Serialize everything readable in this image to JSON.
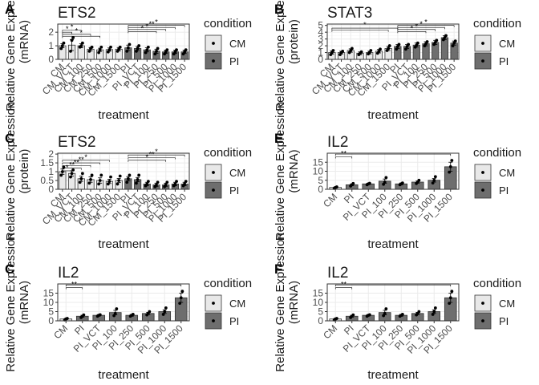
{
  "figure": {
    "legend_title": "condition",
    "legend_items": [
      {
        "label": "CM",
        "color": "#e8e8e8"
      },
      {
        "label": "PI",
        "color": "#6e6e6e"
      }
    ]
  },
  "chart_data": [
    {
      "tag": "A",
      "type": "bar",
      "title": "ETS2",
      "xlabel": "treatment",
      "ylabel": [
        "Relative Gene Expression",
        "(mRNA)"
      ],
      "ylim": [
        0,
        2.6
      ],
      "yticks": [
        0,
        1,
        2
      ],
      "categories": [
        "CM",
        "CM_VCT",
        "CM_100",
        "CM_250",
        "CM_500",
        "CM_1000",
        "CM_1500",
        "PI",
        "PI_VCT",
        "PI_100",
        "PI_250",
        "PI_500",
        "PI_1000",
        "PI_1500"
      ],
      "values": [
        1.0,
        1.05,
        1.0,
        0.75,
        0.7,
        0.72,
        0.75,
        0.85,
        0.8,
        0.7,
        0.6,
        0.55,
        0.55,
        0.55
      ],
      "conditions": [
        "CM",
        "CM",
        "CM",
        "CM",
        "CM",
        "CM",
        "CM",
        "PI",
        "PI",
        "PI",
        "PI",
        "PI",
        "PI",
        "PI"
      ],
      "points": [
        [
          0.8,
          1.0,
          1.2
        ],
        [
          0.6,
          1.4,
          1.6
        ],
        [
          0.9,
          1.0,
          1.2
        ],
        [
          0.6,
          0.8,
          0.9
        ],
        [
          0.5,
          0.7,
          0.9
        ],
        [
          0.55,
          0.7,
          0.9
        ],
        [
          0.6,
          0.75,
          0.9
        ],
        [
          0.6,
          0.85,
          1.1
        ],
        [
          0.6,
          0.8,
          1.0
        ],
        [
          0.5,
          0.7,
          0.9
        ],
        [
          0.4,
          0.6,
          0.8
        ],
        [
          0.4,
          0.55,
          0.7
        ],
        [
          0.4,
          0.55,
          0.7
        ],
        [
          0.4,
          0.55,
          0.7
        ]
      ],
      "errors": [
        0.15,
        0.4,
        0.15,
        0.12,
        0.12,
        0.12,
        0.12,
        0.2,
        0.15,
        0.15,
        0.15,
        0.12,
        0.12,
        0.12
      ],
      "brackets": [
        {
          "from": 0,
          "to": 1,
          "y": 2.0,
          "label": "*"
        },
        {
          "from": 0,
          "to": 2,
          "y": 2.15,
          "label": "*"
        },
        {
          "from": 0,
          "to": 3,
          "y": 1.85,
          "label": "*"
        },
        {
          "from": 0,
          "to": 4,
          "y": 1.7,
          "label": "*"
        },
        {
          "from": 7,
          "to": 13,
          "y": 2.5,
          "label": "*"
        },
        {
          "from": 7,
          "to": 12,
          "y": 2.35,
          "label": "**"
        },
        {
          "from": 7,
          "to": 11,
          "y": 2.2,
          "label": "*"
        },
        {
          "from": 7,
          "to": 10,
          "y": 2.05,
          "label": "*"
        }
      ]
    },
    {
      "tag": "B",
      "type": "bar",
      "title": "STAT3",
      "xlabel": "treatment",
      "ylabel": [
        "Relative Gene Expression",
        "(protein)"
      ],
      "ylim": [
        0,
        5.2
      ],
      "yticks": [
        0,
        1,
        2,
        3,
        4,
        5
      ],
      "categories": [
        "CM",
        "CM_VCT",
        "CM_100",
        "CM_250",
        "CM_500",
        "CM_1000",
        "CM_1500",
        "PI",
        "PI_VCT",
        "PI_100",
        "PI_250",
        "PI_500",
        "PI_1000",
        "PI_1500"
      ],
      "values": [
        1.0,
        1.0,
        1.3,
        0.9,
        1.0,
        1.2,
        1.6,
        1.9,
        1.9,
        2.1,
        2.3,
        2.5,
        3.2,
        2.4
      ],
      "conditions": [
        "CM",
        "CM",
        "CM",
        "CM",
        "CM",
        "CM",
        "CM",
        "PI",
        "PI",
        "PI",
        "PI",
        "PI",
        "PI",
        "PI"
      ],
      "points": [
        [
          0.7,
          1.0,
          1.3
        ],
        [
          0.7,
          1.0,
          1.2
        ],
        [
          1.0,
          1.3,
          1.6
        ],
        [
          0.7,
          0.9,
          1.1
        ],
        [
          0.8,
          1.0,
          1.3
        ],
        [
          0.9,
          1.2,
          1.5
        ],
        [
          1.3,
          1.6,
          2.0
        ],
        [
          1.5,
          1.9,
          2.2
        ],
        [
          1.5,
          1.9,
          2.2
        ],
        [
          1.8,
          2.1,
          2.4
        ],
        [
          2.0,
          2.3,
          2.6
        ],
        [
          2.2,
          2.5,
          2.8
        ],
        [
          2.9,
          3.2,
          3.5
        ],
        [
          2.0,
          2.4,
          2.7
        ]
      ],
      "errors": [
        0.25,
        0.2,
        0.25,
        0.2,
        0.2,
        0.25,
        0.3,
        0.3,
        0.3,
        0.3,
        0.3,
        0.3,
        0.3,
        0.3
      ],
      "brackets": [
        {
          "from": 0,
          "to": 7,
          "y": 4.6,
          "label": "*"
        },
        {
          "from": 0,
          "to": 6,
          "y": 4.3,
          "label": ""
        },
        {
          "from": 7,
          "to": 13,
          "y": 5.0,
          "label": "*"
        },
        {
          "from": 7,
          "to": 12,
          "y": 4.7,
          "label": "*"
        },
        {
          "from": 7,
          "to": 11,
          "y": 4.4,
          "label": "*"
        },
        {
          "from": 7,
          "to": 10,
          "y": 4.1,
          "label": "*"
        }
      ]
    },
    {
      "tag": "C",
      "type": "bar",
      "title": "ETS2",
      "xlabel": "treatment",
      "ylabel": [
        "Relative Gene Expression",
        "(protein)"
      ],
      "ylim": [
        0,
        2.05
      ],
      "yticks": [
        0.0,
        0.5,
        1.0,
        1.5,
        2.0
      ],
      "categories": [
        "CM",
        "CM_VCT",
        "CM_100",
        "CM_250",
        "CM_500",
        "CM_1000",
        "CM_1500",
        "PI",
        "PI_VCT",
        "PI_100",
        "PI_250",
        "PI_500",
        "PI_1000",
        "PI_1500"
      ],
      "values": [
        1.0,
        0.9,
        0.6,
        0.55,
        0.5,
        0.45,
        0.5,
        0.6,
        0.55,
        0.3,
        0.25,
        0.25,
        0.3,
        0.3
      ],
      "conditions": [
        "CM",
        "CM",
        "CM",
        "CM",
        "CM",
        "CM",
        "CM",
        "PI",
        "PI",
        "PI",
        "PI",
        "PI",
        "PI",
        "PI"
      ],
      "points": [
        [
          0.8,
          1.0,
          1.25
        ],
        [
          0.7,
          0.9,
          1.1
        ],
        [
          0.4,
          0.6,
          0.9
        ],
        [
          0.35,
          0.55,
          0.8
        ],
        [
          0.3,
          0.5,
          0.8
        ],
        [
          0.3,
          0.45,
          0.7
        ],
        [
          0.3,
          0.5,
          0.75
        ],
        [
          0.4,
          0.6,
          0.8
        ],
        [
          0.35,
          0.55,
          0.8
        ],
        [
          0.2,
          0.3,
          0.45
        ],
        [
          0.15,
          0.25,
          0.4
        ],
        [
          0.15,
          0.25,
          0.4
        ],
        [
          0.2,
          0.3,
          0.45
        ],
        [
          0.2,
          0.3,
          0.45
        ]
      ],
      "errors": [
        0.15,
        0.15,
        0.15,
        0.15,
        0.15,
        0.12,
        0.12,
        0.12,
        0.12,
        0.1,
        0.1,
        0.1,
        0.1,
        0.1
      ],
      "brackets": [
        {
          "from": 0,
          "to": 1,
          "y": 1.05,
          "label": "*"
        },
        {
          "from": 0,
          "to": 2,
          "y": 1.2,
          "label": "**"
        },
        {
          "from": 0,
          "to": 3,
          "y": 1.35,
          "label": "**"
        },
        {
          "from": 0,
          "to": 4,
          "y": 1.5,
          "label": "**"
        },
        {
          "from": 0,
          "to": 5,
          "y": 1.65,
          "label": "*"
        },
        {
          "from": 7,
          "to": 13,
          "y": 1.95,
          "label": "*"
        },
        {
          "from": 7,
          "to": 12,
          "y": 1.8,
          "label": "**"
        },
        {
          "from": 7,
          "to": 11,
          "y": 1.65,
          "label": "*"
        }
      ]
    },
    {
      "tag": "E",
      "type": "bar",
      "title": "IL2",
      "xlabel": "treatment",
      "ylabel": [
        "Relative Gene Expression",
        "(mRNA)"
      ],
      "ylim": [
        0,
        20
      ],
      "yticks": [
        0,
        5,
        10,
        15
      ],
      "categories": [
        "CM",
        "PI",
        "PI_VCT",
        "PI_100",
        "PI_250",
        "PI_500",
        "PI_1000",
        "PI_1500"
      ],
      "values": [
        1.0,
        2.5,
        3.0,
        4.5,
        3.0,
        4.0,
        5.0,
        12.5
      ],
      "conditions": [
        "CM",
        "PI",
        "PI",
        "PI",
        "PI",
        "PI",
        "PI",
        "PI"
      ],
      "points": [
        [
          0.5,
          1.0,
          1.3
        ],
        [
          1.8,
          2.5,
          3.2
        ],
        [
          2.5,
          3.0,
          3.3
        ],
        [
          2.8,
          4.0,
          6.5
        ],
        [
          2.5,
          3.0,
          3.5
        ],
        [
          3.2,
          4.0,
          5.0
        ],
        [
          3.5,
          5.0,
          7.0
        ],
        [
          9.5,
          12.5,
          16.0
        ]
      ],
      "errors": [
        0.3,
        0.5,
        0.4,
        1.2,
        0.5,
        0.6,
        1.0,
        2.5
      ],
      "brackets": [
        {
          "from": 0,
          "to": 1,
          "y": 18.0,
          "label": "**"
        },
        {
          "from": 0,
          "to": 7,
          "y": 19.5,
          "label": ""
        }
      ]
    },
    {
      "tag": "C",
      "type": "bar",
      "title": "IL2",
      "xlabel": "treatment",
      "ylabel": [
        "Relative Gene Expression",
        "(mRNA)"
      ],
      "ylim": [
        0,
        20
      ],
      "yticks": [
        0,
        5,
        10,
        15
      ],
      "categories": [
        "CM",
        "PI",
        "PI_VCT",
        "PI_100",
        "PI_250",
        "PI_500",
        "PI_1000",
        "PI_1500"
      ],
      "values": [
        1.0,
        2.5,
        3.0,
        4.5,
        3.0,
        4.0,
        5.0,
        12.5
      ],
      "conditions": [
        "CM",
        "PI",
        "PI",
        "PI",
        "PI",
        "PI",
        "PI",
        "PI"
      ],
      "points": [
        [
          0.5,
          1.0,
          1.3
        ],
        [
          1.8,
          2.5,
          3.2
        ],
        [
          2.5,
          3.0,
          3.3
        ],
        [
          2.8,
          4.0,
          6.5
        ],
        [
          2.5,
          3.0,
          3.5
        ],
        [
          3.2,
          4.0,
          5.0
        ],
        [
          3.5,
          5.0,
          7.0
        ],
        [
          9.5,
          12.5,
          16.0
        ]
      ],
      "errors": [
        0.3,
        0.5,
        0.4,
        1.2,
        0.5,
        0.6,
        1.0,
        2.5
      ],
      "brackets": [
        {
          "from": 0,
          "to": 1,
          "y": 18.0,
          "label": "**"
        },
        {
          "from": 0,
          "to": 7,
          "y": 19.5,
          "label": ""
        }
      ]
    },
    {
      "tag": "F",
      "type": "bar",
      "title": "IL2",
      "xlabel": "treatment",
      "ylabel": [
        "Relative Gene Expression",
        "(mRNA)"
      ],
      "ylim": [
        0,
        20
      ],
      "yticks": [
        0,
        5,
        10,
        15
      ],
      "categories": [
        "CM",
        "PI",
        "PI_VCT",
        "PI_100",
        "PI_250",
        "PI_500",
        "PI_1000",
        "PI_1500"
      ],
      "values": [
        1.0,
        2.5,
        3.0,
        4.5,
        3.0,
        4.0,
        5.0,
        12.5
      ],
      "conditions": [
        "CM",
        "PI",
        "PI",
        "PI",
        "PI",
        "PI",
        "PI",
        "PI"
      ],
      "points": [
        [
          0.5,
          1.0,
          1.3
        ],
        [
          1.8,
          2.5,
          3.2
        ],
        [
          2.5,
          3.0,
          3.3
        ],
        [
          2.8,
          4.0,
          6.5
        ],
        [
          2.5,
          3.0,
          3.5
        ],
        [
          3.2,
          4.0,
          5.0
        ],
        [
          3.5,
          5.0,
          7.0
        ],
        [
          9.5,
          12.5,
          16.0
        ]
      ],
      "errors": [
        0.3,
        0.5,
        0.4,
        1.2,
        0.5,
        0.6,
        1.0,
        2.5
      ],
      "brackets": [
        {
          "from": 0,
          "to": 1,
          "y": 18.0,
          "label": "**"
        },
        {
          "from": 0,
          "to": 7,
          "y": 19.5,
          "label": ""
        }
      ]
    }
  ]
}
